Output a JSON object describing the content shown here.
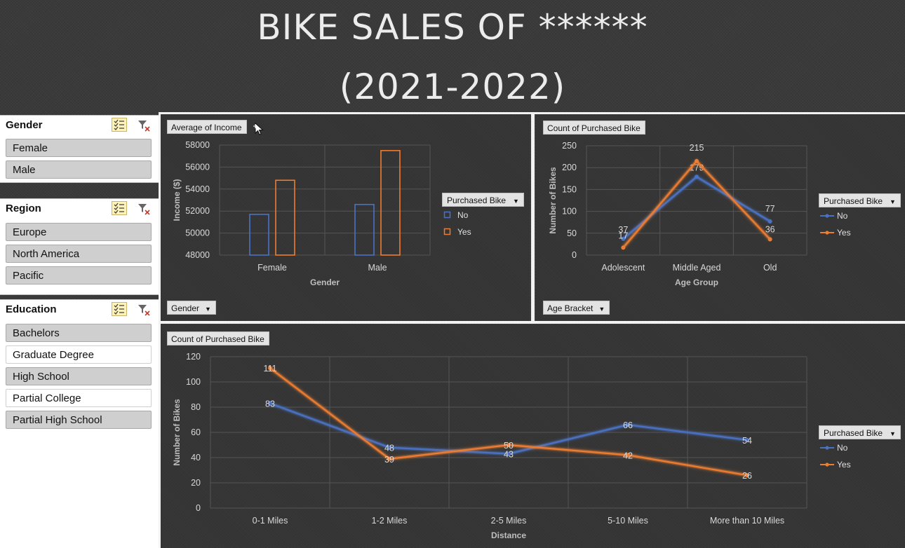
{
  "title": {
    "line1": "BIKE SALES OF ******",
    "line2": "(2021-2022)"
  },
  "colors": {
    "no": "#4a72c4",
    "yes": "#ed7d31",
    "axis_text": "#d9d9d9",
    "grid": "#555555"
  },
  "slicers": [
    {
      "title": "Gender",
      "items": [
        {
          "label": "Female",
          "selected": true
        },
        {
          "label": "Male",
          "selected": true
        }
      ]
    },
    {
      "title": "Region",
      "items": [
        {
          "label": "Europe",
          "selected": true
        },
        {
          "label": "North America",
          "selected": true
        },
        {
          "label": "Pacific",
          "selected": true
        }
      ]
    },
    {
      "title": "Education",
      "items": [
        {
          "label": "Bachelors",
          "selected": true
        },
        {
          "label": "Graduate Degree",
          "selected": false
        },
        {
          "label": "High School",
          "selected": true
        },
        {
          "label": "Partial College",
          "selected": false
        },
        {
          "label": "Partial High School",
          "selected": true
        }
      ]
    }
  ],
  "chart_data": [
    {
      "type": "bar",
      "value_button": "Average of Income",
      "axis_button": "Gender",
      "legend_title": "Purchased Bike",
      "categories": [
        "Female",
        "Male"
      ],
      "series": [
        {
          "name": "No",
          "values": [
            51700,
            52600
          ]
        },
        {
          "name": "Yes",
          "values": [
            54800,
            57500
          ]
        }
      ],
      "xlabel": "Gender",
      "ylabel": "Income ($)",
      "ylim": [
        48000,
        58000
      ],
      "yticks": [
        "48000",
        "50000",
        "52000",
        "54000",
        "56000",
        "58000"
      ],
      "legend": "right",
      "grid": true
    },
    {
      "type": "line",
      "value_button": "Count of Purchased Bike",
      "axis_button": "Age Bracket",
      "legend_title": "Purchased Bike",
      "categories": [
        "Adolescent",
        "Middle Aged",
        "Old"
      ],
      "series": [
        {
          "name": "No",
          "values": [
            37,
            179,
            77
          ]
        },
        {
          "name": "Yes",
          "values": [
            17,
            215,
            36
          ]
        }
      ],
      "xlabel": "Age Group",
      "ylabel": "Number of Bikes",
      "ylim": [
        0,
        250
      ],
      "yticks": [
        "0",
        "50",
        "100",
        "150",
        "200",
        "250"
      ],
      "legend": "right",
      "grid": true
    },
    {
      "type": "line",
      "value_button": "Count of Purchased Bike",
      "legend_title": "Purchased Bike",
      "categories": [
        "0-1 Miles",
        "1-2 Miles",
        "2-5 Miles",
        "5-10 Miles",
        "More than 10 Miles"
      ],
      "series": [
        {
          "name": "No",
          "values": [
            83,
            48,
            43,
            66,
            54
          ]
        },
        {
          "name": "Yes",
          "values": [
            111,
            39,
            50,
            42,
            26
          ]
        }
      ],
      "xlabel": "Distance",
      "ylabel": "Number of Bikes",
      "ylim": [
        0,
        120
      ],
      "yticks": [
        "0",
        "20",
        "40",
        "60",
        "80",
        "100",
        "120"
      ],
      "legend": "right",
      "grid": true
    }
  ]
}
